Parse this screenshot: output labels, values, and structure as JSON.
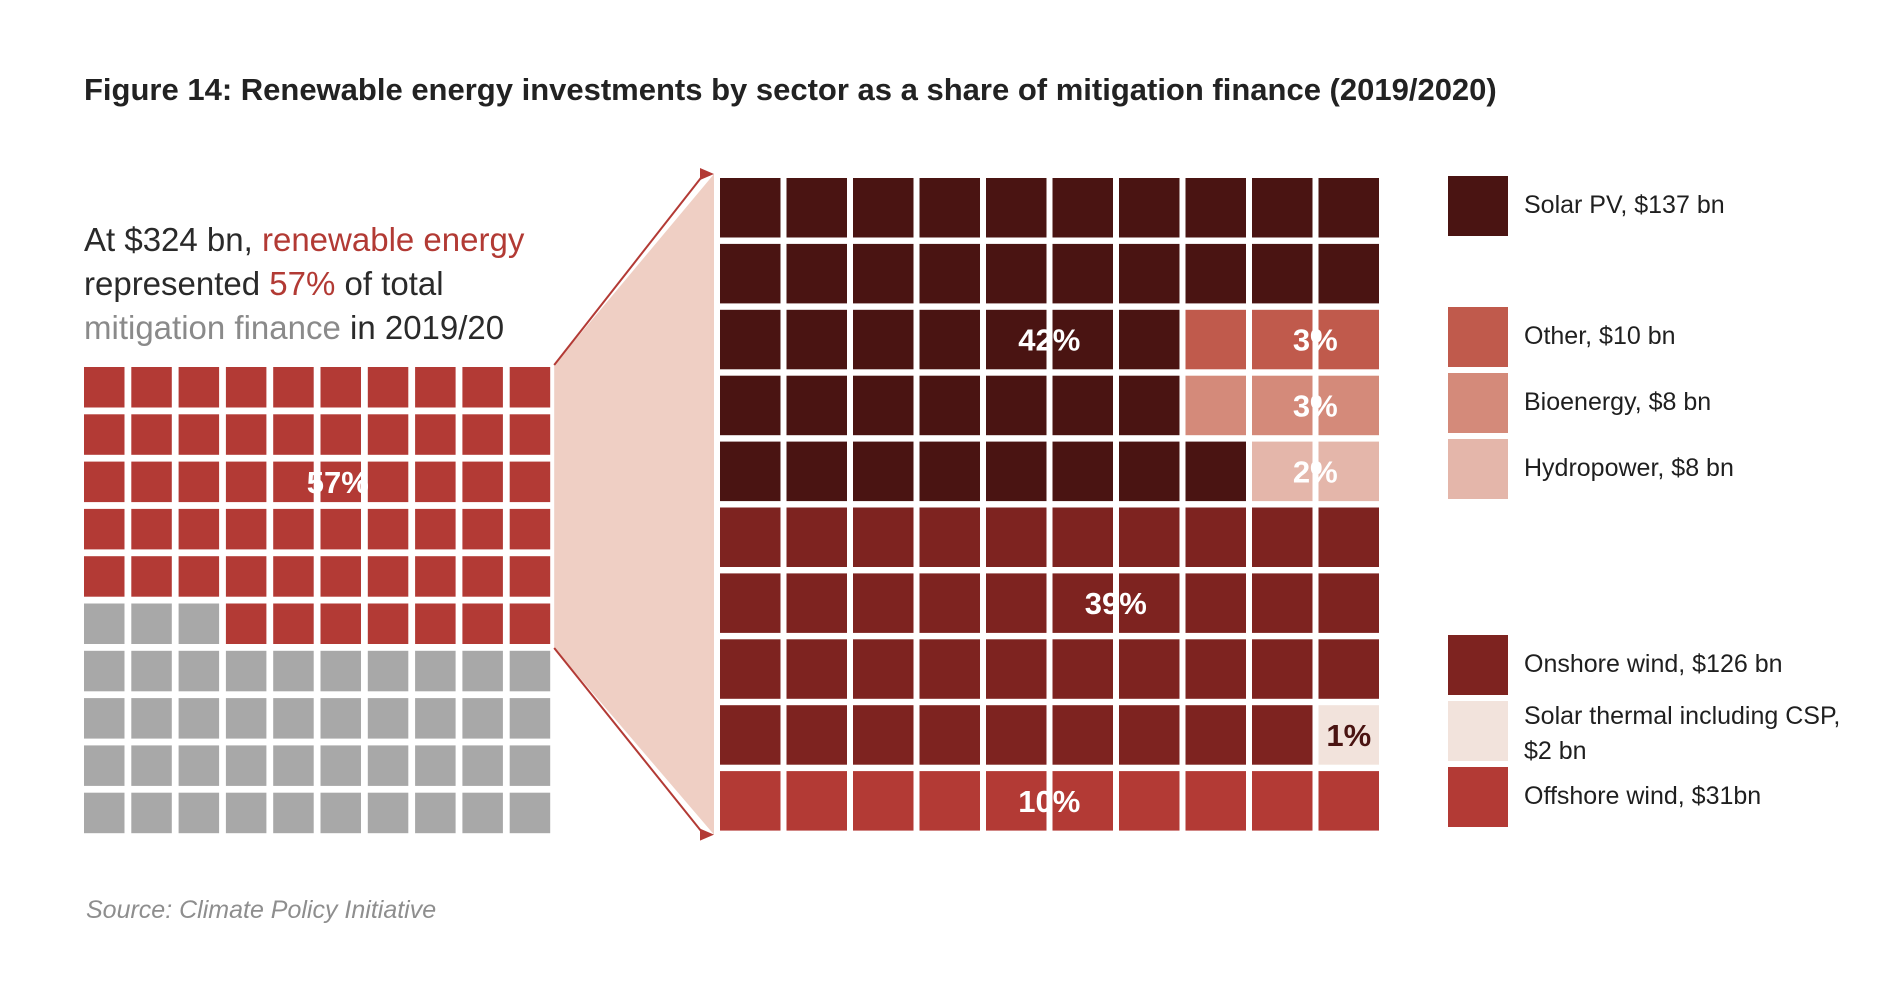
{
  "title": "Figure 14: Renewable energy investments by sector as a share of mitigation finance (2019/2020)",
  "intro": {
    "part1": "At $324 bn, ",
    "part2": "renewable energy",
    "part3": "represented ",
    "part4": "57%",
    "part5": " of total",
    "part6": "mitigation finance",
    "part7": " in 2019/20"
  },
  "source": "Source: Climate Policy Initiative",
  "colors": {
    "renewable": "#b33a35",
    "other_mitigation": "#a8a8a8",
    "solar_pv": "#4a1412",
    "other": "#c05a4c",
    "bioenergy": "#d48a7a",
    "hydropower": "#e4b6aa",
    "onshore_wind": "#7e2320",
    "solar_thermal": "#f2e3dc",
    "offshore_wind": "#b33a35",
    "connector_fill": "#efcfc4",
    "connector_stroke": "#b33a35"
  },
  "chart_data": [
    {
      "type": "waffle",
      "total_cells": 100,
      "series": [
        {
          "key": "renewable",
          "value": 57,
          "label": "57%"
        },
        {
          "key": "other_mitigation",
          "value": 43
        }
      ]
    },
    {
      "type": "waffle",
      "total_cells": 100,
      "series": [
        {
          "key": "solar_pv",
          "name": "Solar PV, $137 bn",
          "value": 42,
          "label": "42%"
        },
        {
          "key": "other",
          "name": "Other, $10 bn",
          "value": 3,
          "label": "3%"
        },
        {
          "key": "bioenergy",
          "name": "Bioenergy, $8 bn",
          "value": 3,
          "label": "3%"
        },
        {
          "key": "hydropower",
          "name": "Hydropower, $8 bn",
          "value": 2,
          "label": "2%"
        },
        {
          "key": "onshore_wind",
          "name": "Onshore wind, $126 bn",
          "value": 39,
          "label": "39%"
        },
        {
          "key": "solar_thermal",
          "name": "Solar thermal including CSP, $2 bn",
          "value": 1,
          "label": "1%"
        },
        {
          "key": "offshore_wind",
          "name": "Offshore wind, $31bn",
          "value": 10,
          "label": "10%"
        }
      ]
    }
  ],
  "legend": [
    {
      "key": "solar_pv",
      "label": "Solar PV, $137 bn"
    },
    {
      "key": "other",
      "label": "Other, $10 bn"
    },
    {
      "key": "bioenergy",
      "label": "Bioenergy, $8 bn"
    },
    {
      "key": "hydropower",
      "label": "Hydropower, $8 bn"
    },
    {
      "key": "onshore_wind",
      "label": "Onshore wind, $126 bn"
    },
    {
      "key": "solar_thermal",
      "label": "Solar thermal including CSP, $2 bn"
    },
    {
      "key": "offshore_wind",
      "label": "Offshore wind, $31bn"
    }
  ]
}
